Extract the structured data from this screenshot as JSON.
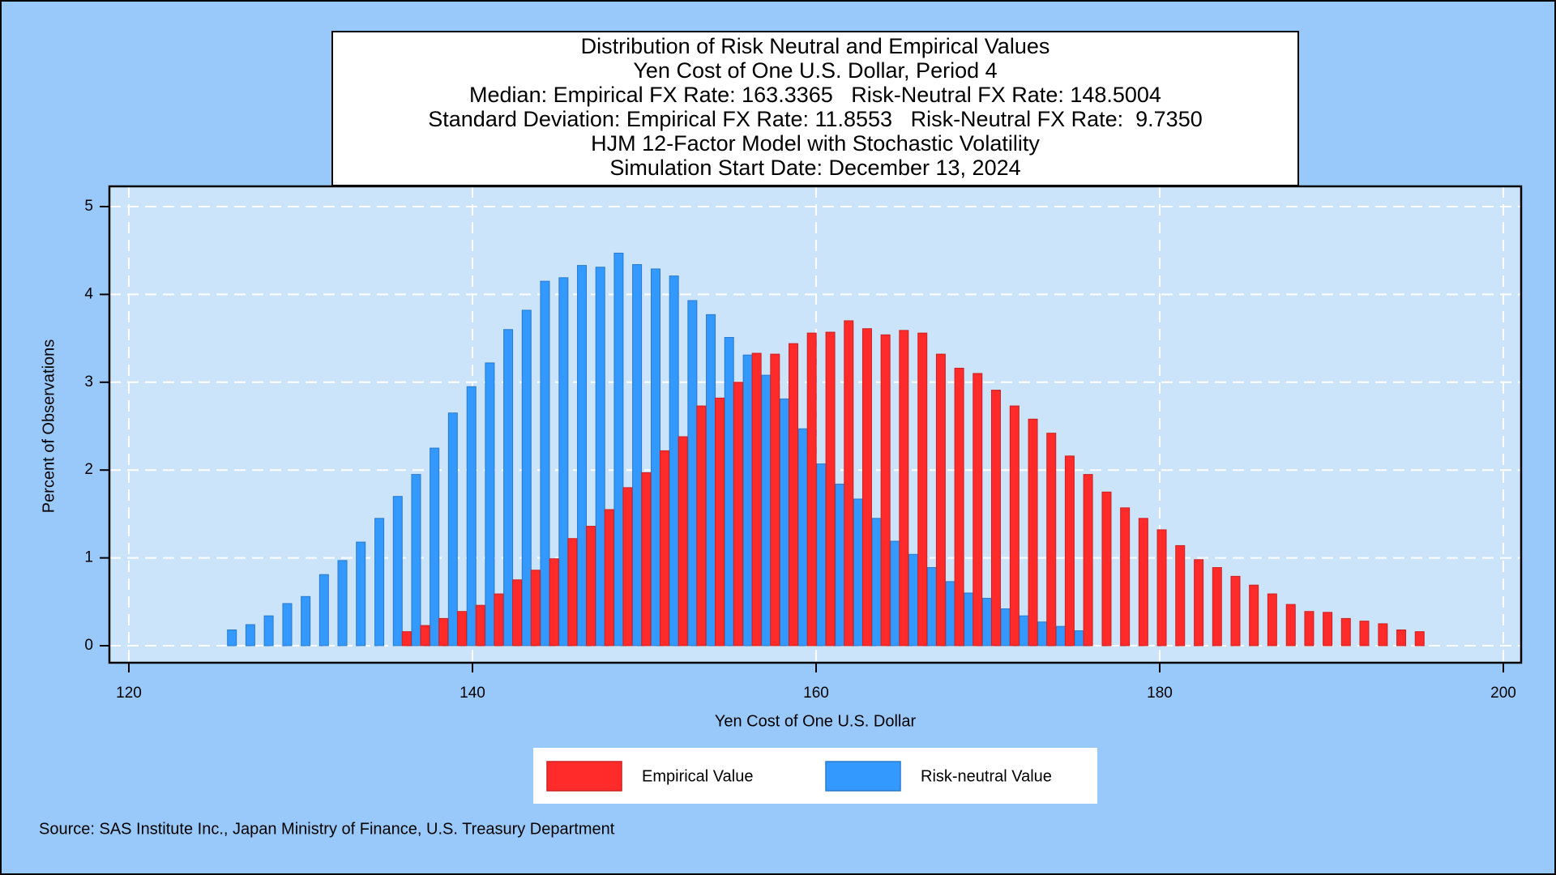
{
  "chart_data": {
    "type": "bar",
    "title": "Distribution of Risk Neutral and Empirical Values",
    "subtitles": [
      "Yen Cost of One U.S. Dollar, Period 4",
      "Median: Empirical FX Rate: 163.3365   Risk-Neutral FX Rate: 148.5004",
      "Standard Deviation: Empirical FX Rate: 11.8553   Risk-Neutral FX Rate:  9.7350",
      "HJM 12-Factor Model with Stochastic Volatility",
      "Simulation Start Date: December 13, 2024"
    ],
    "x_label": "Yen Cost of One U.S. Dollar",
    "y_label": "Percent of Observations",
    "source": "Source: SAS Institute Inc., Japan Ministry of Finance, U.S. Treasury Department",
    "xlim": [
      120,
      200
    ],
    "xticks": [
      120,
      140,
      160,
      180,
      200
    ],
    "ylim": [
      0,
      5
    ],
    "yticks": [
      0,
      1,
      2,
      3,
      4,
      5
    ],
    "grid": true,
    "legend": "bottom",
    "series": [
      {
        "name": "Risk-neutral Value",
        "color": "#3399ff",
        "x": [
          126.0,
          127.07,
          128.14,
          129.22,
          130.29,
          131.36,
          132.43,
          133.5,
          134.58,
          135.65,
          136.72,
          137.79,
          138.86,
          139.94,
          141.01,
          142.08,
          143.15,
          144.22,
          145.3,
          146.37,
          147.44,
          148.51,
          149.58,
          150.66,
          151.73,
          152.8,
          153.87,
          154.94,
          156.02,
          157.09,
          158.16,
          159.23,
          160.3,
          161.38,
          162.45,
          163.52,
          164.59,
          165.66,
          166.74,
          167.81,
          168.88,
          169.95,
          171.02,
          172.1,
          173.17,
          174.24,
          175.31
        ],
        "values": [
          0.18,
          0.24,
          0.34,
          0.48,
          0.56,
          0.81,
          0.97,
          1.18,
          1.45,
          1.7,
          1.95,
          2.25,
          2.65,
          2.95,
          3.22,
          3.6,
          3.82,
          4.15,
          4.19,
          4.33,
          4.31,
          4.47,
          4.34,
          4.29,
          4.21,
          3.93,
          3.77,
          3.51,
          3.31,
          3.08,
          2.81,
          2.47,
          2.07,
          1.84,
          1.67,
          1.45,
          1.19,
          1.04,
          0.89,
          0.73,
          0.6,
          0.54,
          0.42,
          0.34,
          0.27,
          0.22,
          0.17
        ]
      },
      {
        "name": "Empirical Value",
        "color": "#ff2a2a",
        "x": [
          136.17,
          137.24,
          138.31,
          139.39,
          140.46,
          141.53,
          142.6,
          143.67,
          144.75,
          145.82,
          146.89,
          147.96,
          149.03,
          150.11,
          151.18,
          152.25,
          153.32,
          154.39,
          155.47,
          156.54,
          157.61,
          158.68,
          159.75,
          160.83,
          161.9,
          162.97,
          164.04,
          165.11,
          166.19,
          167.26,
          168.33,
          169.4,
          170.47,
          171.55,
          172.62,
          173.69,
          174.76,
          175.83,
          176.91,
          177.98,
          179.05,
          180.12,
          181.19,
          182.27,
          183.34,
          184.41,
          185.48,
          186.55,
          187.63,
          188.7,
          189.77,
          190.84,
          191.91,
          192.99,
          194.06,
          195.13
        ],
        "values": [
          0.16,
          0.23,
          0.31,
          0.39,
          0.46,
          0.59,
          0.75,
          0.86,
          0.99,
          1.22,
          1.36,
          1.55,
          1.8,
          1.97,
          2.22,
          2.38,
          2.73,
          2.82,
          3.0,
          3.33,
          3.32,
          3.44,
          3.56,
          3.57,
          3.7,
          3.61,
          3.54,
          3.59,
          3.56,
          3.32,
          3.16,
          3.1,
          2.91,
          2.73,
          2.58,
          2.42,
          2.16,
          1.95,
          1.75,
          1.57,
          1.45,
          1.32,
          1.14,
          0.98,
          0.89,
          0.79,
          0.69,
          0.59,
          0.47,
          0.39,
          0.38,
          0.31,
          0.28,
          0.25,
          0.18,
          0.16
        ]
      }
    ]
  }
}
